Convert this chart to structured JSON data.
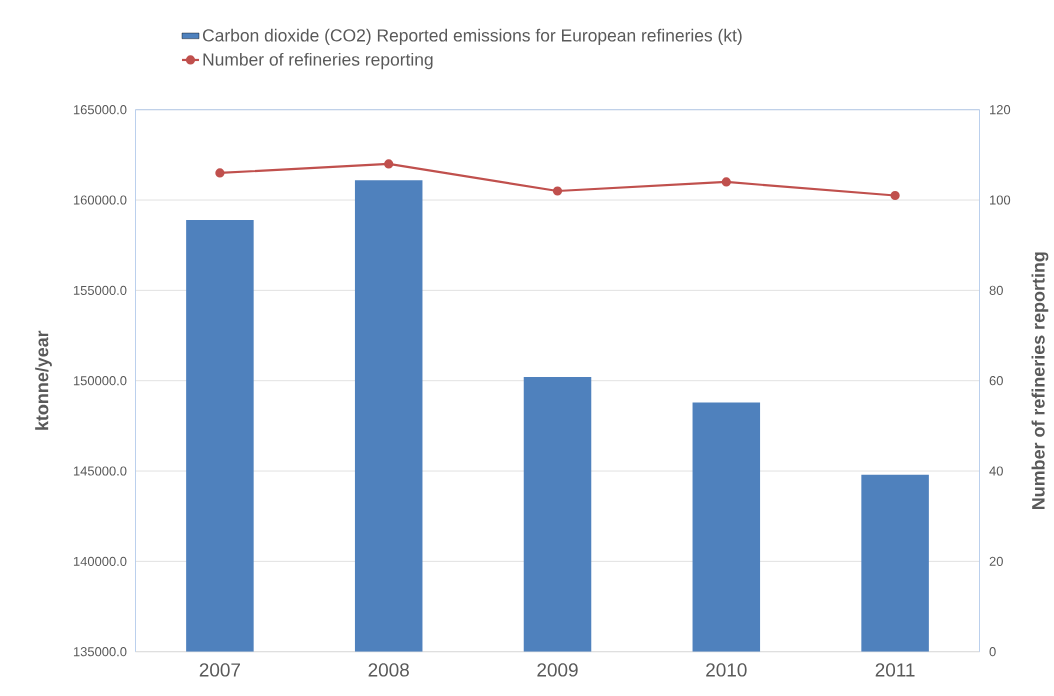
{
  "chart_data": {
    "type": "bar",
    "categories": [
      "2007",
      "2008",
      "2009",
      "2010",
      "2011"
    ],
    "series": [
      {
        "name": "Carbon dioxide (CO2) Reported emissions for European refineries (kt)",
        "color": "#4f81bd",
        "values": [
          158900,
          161100,
          150200,
          148800,
          144800
        ]
      },
      {
        "name": "Number of refineries reporting",
        "type": "line",
        "axis": "y2",
        "color": "#c0504d",
        "marker": "circle",
        "line_style": "solid",
        "values": [
          106,
          108,
          102,
          104,
          101
        ]
      }
    ],
    "ylabel": "ktonne/year",
    "y2label": "Number of refineries reporting",
    "ylim": [
      135000,
      165000
    ],
    "yticks": [
      {
        "value": 135000,
        "label": "135000.0"
      },
      {
        "value": 140000,
        "label": "140000.0"
      },
      {
        "value": 145000,
        "label": "145000.0"
      },
      {
        "value": 150000,
        "label": "150000.0"
      },
      {
        "value": 155000,
        "label": "155000.0"
      },
      {
        "value": 160000,
        "label": "160000.0"
      },
      {
        "value": 165000,
        "label": "165000.0"
      }
    ],
    "y2lim": [
      0,
      120
    ],
    "y2ticks": [
      0,
      20,
      40,
      60,
      80,
      100,
      120
    ],
    "grid": "y",
    "legend": "top"
  }
}
